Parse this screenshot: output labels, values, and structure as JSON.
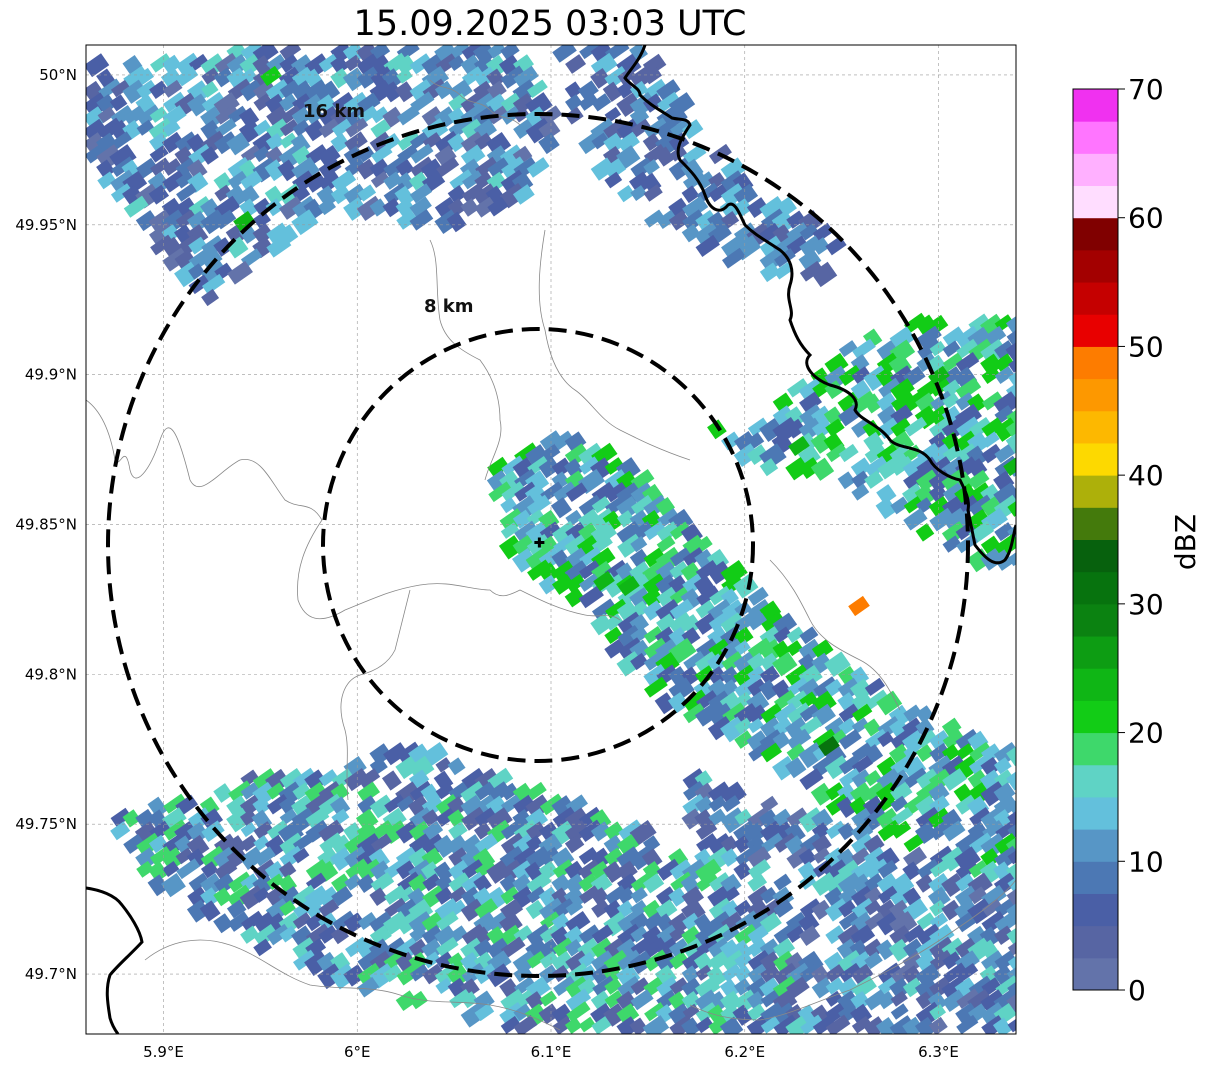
{
  "title": "15.09.2025 03:03 UTC",
  "map": {
    "lon_range": [
      5.86,
      6.34
    ],
    "lat_range": [
      49.68,
      50.01
    ],
    "lon_ticks": [
      {
        "value": 5.9,
        "label": "5.9°E"
      },
      {
        "value": 6.0,
        "label": "6°E"
      },
      {
        "value": 6.1,
        "label": "6.1°E"
      },
      {
        "value": 6.2,
        "label": "6.2°E"
      },
      {
        "value": 6.3,
        "label": "6.3°E"
      }
    ],
    "lat_ticks": [
      {
        "value": 50.0,
        "label": "50°N"
      },
      {
        "value": 49.95,
        "label": "49.95°N"
      },
      {
        "value": 49.9,
        "label": "49.9°N"
      },
      {
        "value": 49.85,
        "label": "49.85°N"
      },
      {
        "value": 49.8,
        "label": "49.8°N"
      },
      {
        "value": 49.75,
        "label": "49.75°N"
      },
      {
        "value": 49.7,
        "label": "49.7°N"
      }
    ],
    "radar_site": {
      "lon": 6.094,
      "lat": 49.844
    },
    "range_rings": [
      {
        "label": "8 km"
      },
      {
        "label": "16 km"
      }
    ]
  },
  "colorbar": {
    "label": "dBZ",
    "ticks": [
      "0",
      "10",
      "20",
      "30",
      "40",
      "50",
      "60",
      "70"
    ],
    "colors": [
      "#6373aa",
      "#5765a3",
      "#4a5fa6",
      "#4c78b4",
      "#5796c6",
      "#63c0dc",
      "#5fd3c5",
      "#3ed86b",
      "#12cc16",
      "#0fb615",
      "#0d9d13",
      "#0b8211",
      "#07730e",
      "#07610d",
      "#447a0c",
      "#adb00a",
      "#fdd900",
      "#fdb800",
      "#fd9800",
      "#fd7c00",
      "#e80000",
      "#c50000",
      "#a30000",
      "#800000",
      "#ffddff",
      "#ffb0ff",
      "#ff75ff",
      "#f031f0"
    ]
  }
}
